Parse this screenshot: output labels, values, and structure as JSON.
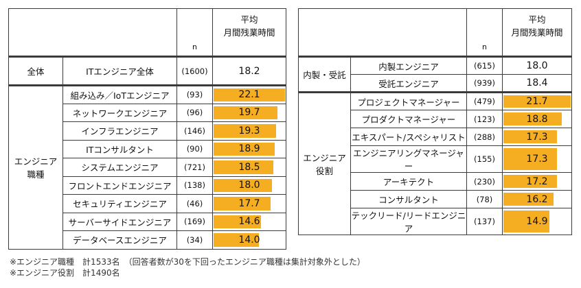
{
  "left": {
    "header": {
      "n_label": "n",
      "title_line1": "平均",
      "title_line2": "月間残業時間"
    },
    "overall": {
      "group": "全体",
      "label": "ITエンジニア全体",
      "n": "(1600)",
      "value": 18.2
    },
    "group_label_line1": "エンジニア",
    "group_label_line2": "職種"
  },
  "right": {
    "header": {
      "n_label": "n",
      "title_line1": "平均",
      "title_line2": "月間残業時間"
    },
    "group1_label": "内製・受託",
    "group2_label_line1": "エンジニア",
    "group2_label_line2": "役割"
  },
  "notes": {
    "line1": "※エンジニア職種　計1533名　（回答者数が30を下回ったエンジニア職種は集計対象外とした）",
    "line2": "※エンジニア役割　計1490名"
  },
  "chart_data": [
    {
      "type": "bar",
      "title": "",
      "ylabel": "平均 月間残業時間",
      "categories": [
        "組み込み／IoTエンジニア",
        "ネットワークエンジニア",
        "インフラエンジニア",
        "ITコンサルタント",
        "システムエンジニア",
        "フロントエンドエンジニア",
        "セキュリティエンジニア",
        "サーバーサイドエンジニア",
        "データベースエンジニア"
      ],
      "n": [
        "(93)",
        "(96)",
        "(146)",
        "(90)",
        "(721)",
        "(138)",
        "(46)",
        "(169)",
        "(34)"
      ],
      "values": [
        22.1,
        19.7,
        19.3,
        18.9,
        18.5,
        18.0,
        17.7,
        14.6,
        14.0
      ],
      "labels": [
        "22.1",
        "19.7",
        "19.3",
        "18.9",
        "18.5",
        "18.0",
        "17.7",
        "14.6",
        "14.0"
      ],
      "ylim": [
        0,
        22.1
      ],
      "color": "#f5ad22"
    },
    {
      "type": "table",
      "categories": [
        "内製エンジニア",
        "受託エンジニア"
      ],
      "n": [
        "(615)",
        "(939)"
      ],
      "values": [
        18.0,
        18.4
      ],
      "labels": [
        "18.0",
        "18.4"
      ]
    },
    {
      "type": "bar",
      "title": "",
      "ylabel": "平均 月間残業時間",
      "categories": [
        "プロジェクトマネージャー",
        "プロダクトマネージャー",
        "エキスパート/スペシャリスト",
        "エンジニアリングマネージャー",
        "アーキテクト",
        "コンサルタント",
        "テックリード/リードエンジニア"
      ],
      "n": [
        "(479)",
        "(123)",
        "(288)",
        "(155)",
        "(230)",
        "(78)",
        "(137)"
      ],
      "values": [
        21.7,
        18.8,
        17.3,
        17.3,
        17.2,
        16.2,
        14.9
      ],
      "labels": [
        "21.7",
        "18.8",
        "17.3",
        "17.3",
        "17.2",
        "16.2",
        "14.9"
      ],
      "ylim": [
        0,
        21.7
      ],
      "color": "#f5ad22"
    }
  ]
}
